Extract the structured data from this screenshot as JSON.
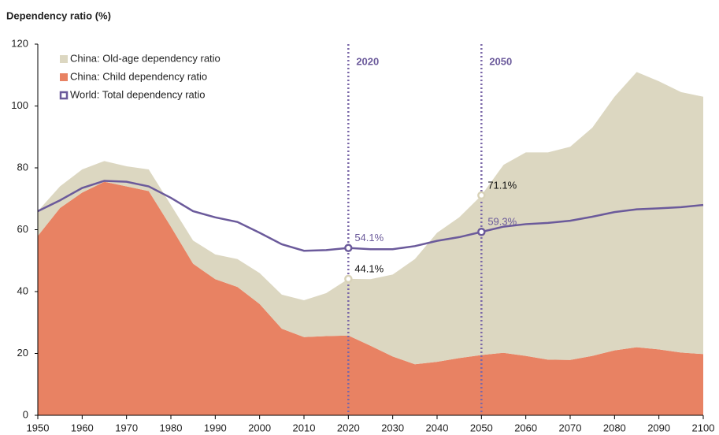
{
  "chart_data": {
    "type": "area",
    "title": "Dependency ratio (%)",
    "x": [
      1950,
      1955,
      1960,
      1965,
      1970,
      1975,
      1980,
      1985,
      1990,
      1995,
      2000,
      2005,
      2010,
      2015,
      2020,
      2025,
      2030,
      2035,
      2040,
      2045,
      2050,
      2055,
      2060,
      2065,
      2070,
      2075,
      2080,
      2085,
      2090,
      2095,
      2100
    ],
    "series": [
      {
        "name": "China: Old-age dependency ratio",
        "color": "#dcd7c1",
        "kind": "area",
        "values": [
          8,
          7,
          7.5,
          6.7,
          6.5,
          7,
          7,
          7.5,
          8,
          9,
          10,
          11,
          11.9,
          13.9,
          18.3,
          21.5,
          26.5,
          34,
          41.7,
          45.5,
          51.6,
          60.8,
          65.8,
          67,
          68.9,
          73.8,
          82,
          89,
          86.7,
          84.2,
          83.2
        ]
      },
      {
        "name": "China: Child dependency ratio",
        "color": "#e88263",
        "kind": "area",
        "values": [
          58,
          67,
          72,
          75.5,
          74,
          72.5,
          61,
          49,
          44,
          41.5,
          36,
          28,
          25.3,
          25.6,
          25.8,
          22.5,
          19,
          16.5,
          17.3,
          18.5,
          19.5,
          20.2,
          19.2,
          18,
          17.9,
          19.2,
          21,
          22,
          21.3,
          20.3,
          19.8
        ]
      },
      {
        "name": "World: Total dependency ratio",
        "color": "#6b5a9b",
        "kind": "line",
        "values": [
          66,
          69.5,
          73.5,
          75.8,
          75.5,
          74,
          70.3,
          66,
          64,
          62.5,
          59,
          55.3,
          53.2,
          53.4,
          54.1,
          53.7,
          53.7,
          54.7,
          56.4,
          57.6,
          59.3,
          61,
          61.8,
          62.2,
          62.9,
          64.2,
          65.7,
          66.6,
          66.9,
          67.3,
          68
        ]
      }
    ],
    "xlim": [
      1950,
      2100
    ],
    "xticks": [
      1950,
      1960,
      1970,
      1980,
      1990,
      2000,
      2010,
      2020,
      2030,
      2040,
      2050,
      2060,
      2070,
      2080,
      2090,
      2100
    ],
    "ylim": [
      0,
      120
    ],
    "yticks": [
      0,
      20,
      40,
      60,
      80,
      100,
      120
    ],
    "vlines": [
      {
        "x": 2020,
        "label": "2020"
      },
      {
        "x": 2050,
        "label": "2050"
      }
    ],
    "annotations": [
      {
        "x": 2020,
        "y": 54.1,
        "label": "54.1%",
        "color": "#6b5a9b"
      },
      {
        "x": 2020,
        "y": 44.1,
        "label": "44.1%",
        "color": "#d8d2b8"
      },
      {
        "x": 2050,
        "y": 71.1,
        "label": "71.1%",
        "color": "#d8d2b8"
      },
      {
        "x": 2050,
        "y": 59.3,
        "label": "59.3%",
        "color": "#6b5a9b"
      }
    ],
    "legend": "upper left"
  }
}
